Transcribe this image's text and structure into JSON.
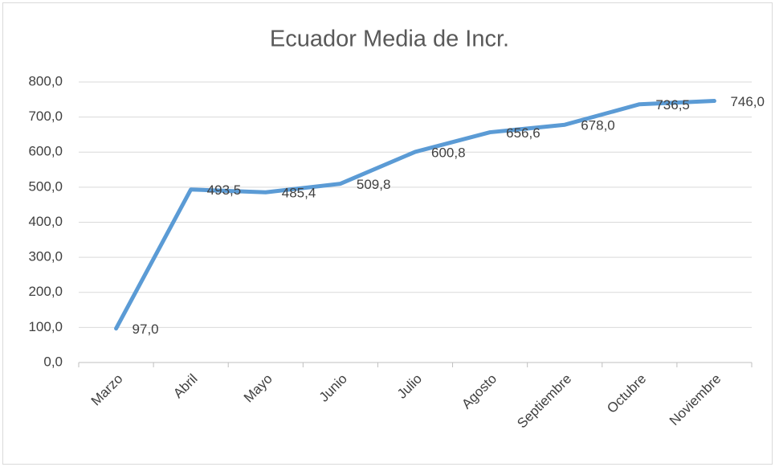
{
  "chart_data": {
    "type": "line",
    "title": "Ecuador Media de Incr.",
    "categories": [
      "Marzo",
      "Abril",
      "Mayo",
      "Junio",
      "Julio",
      "Agosto",
      "Septiembre",
      "Octubre",
      "Noviembre"
    ],
    "series": [
      {
        "color": "#5b9bd5",
        "values": [
          97.0,
          493.5,
          485.4,
          509.8,
          600.8,
          656.6,
          678.0,
          736.5,
          746.0
        ],
        "value_labels": [
          "97,0",
          "493,5",
          "485,4",
          "509,8",
          "600,8",
          "656,6",
          "678,0",
          "736,5",
          "746,0"
        ]
      }
    ],
    "ylim": [
      0,
      800
    ],
    "yticks": [
      {
        "value": 0,
        "label": "0,0"
      },
      {
        "value": 100,
        "label": "100,0"
      },
      {
        "value": 200,
        "label": "200,0"
      },
      {
        "value": 300,
        "label": "300,0"
      },
      {
        "value": 400,
        "label": "400,0"
      },
      {
        "value": 500,
        "label": "500,0"
      },
      {
        "value": 600,
        "label": "600,0"
      },
      {
        "value": 700,
        "label": "700,0"
      },
      {
        "value": 800,
        "label": "800,0"
      }
    ],
    "grid": true
  }
}
